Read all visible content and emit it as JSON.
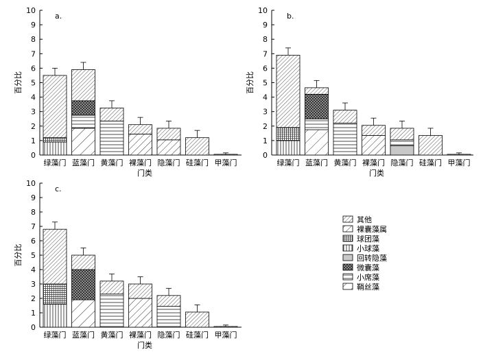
{
  "legend": {
    "entries": [
      {
        "label": "其他",
        "pattern": "diag-dense"
      },
      {
        "label": "裸囊藻属",
        "pattern": "diag-medium"
      },
      {
        "label": "球团藻",
        "pattern": "grid-fine"
      },
      {
        "label": "小球藻",
        "pattern": "vertical"
      },
      {
        "label": "回转隐藻",
        "pattern": "gray"
      },
      {
        "label": "微囊藻",
        "pattern": "crosshatch"
      },
      {
        "label": "小席藻",
        "pattern": "horizontal"
      },
      {
        "label": "鞘丝藻",
        "pattern": "diag-wide"
      }
    ]
  },
  "chart_data": [
    {
      "panel_label": "a.",
      "type": "bar",
      "stacked": true,
      "xlabel": "门类",
      "ylabel": "百分比",
      "ylim": [
        0,
        10
      ],
      "yticks": [
        0,
        1,
        2,
        3,
        4,
        5,
        6,
        7,
        8,
        9,
        10
      ],
      "categories": [
        "绿藻门",
        "蓝藻门",
        "黄藻门",
        "裸藻门",
        "隐藻门",
        "硅藻门",
        "甲藻门"
      ],
      "bars": [
        {
          "category": "绿藻门",
          "total": 5.5,
          "error": 0.5,
          "segments": [
            {
              "pattern": "vertical",
              "value": 0.9
            },
            {
              "pattern": "grid-fine",
              "value": 0.3
            },
            {
              "pattern": "diag-dense",
              "value": 4.3
            }
          ]
        },
        {
          "category": "蓝藻门",
          "total": 5.9,
          "error": 0.5,
          "segments": [
            {
              "pattern": "diag-wide",
              "value": 1.85
            },
            {
              "pattern": "horizontal",
              "value": 0.9
            },
            {
              "pattern": "crosshatch",
              "value": 1.0
            },
            {
              "pattern": "diag-dense",
              "value": 2.15
            }
          ]
        },
        {
          "category": "黄藻门",
          "total": 3.25,
          "error": 0.5,
          "segments": [
            {
              "pattern": "horizontal",
              "value": 2.35
            },
            {
              "pattern": "diag-dense",
              "value": 0.9
            }
          ]
        },
        {
          "category": "裸藻门",
          "total": 2.1,
          "error": 0.5,
          "segments": [
            {
              "pattern": "diag-medium",
              "value": 1.45
            },
            {
              "pattern": "diag-dense",
              "value": 0.65
            }
          ]
        },
        {
          "category": "隐藻门",
          "total": 1.85,
          "error": 0.5,
          "segments": [
            {
              "pattern": "diag-medium",
              "value": 1.05
            },
            {
              "pattern": "diag-dense",
              "value": 0.8
            }
          ]
        },
        {
          "category": "硅藻门",
          "total": 1.2,
          "error": 0.5,
          "segments": [
            {
              "pattern": "diag-dense",
              "value": 1.2
            }
          ]
        },
        {
          "category": "甲藻门",
          "total": 0.05,
          "error": 0.1,
          "segments": [
            {
              "pattern": "diag-dense",
              "value": 0.05
            }
          ]
        }
      ]
    },
    {
      "panel_label": "b.",
      "type": "bar",
      "stacked": true,
      "xlabel": "门类",
      "ylabel": "百分比",
      "ylim": [
        0,
        10
      ],
      "yticks": [
        0,
        1,
        2,
        3,
        4,
        5,
        6,
        7,
        8,
        9,
        10
      ],
      "categories": [
        "绿藻门",
        "蓝藻门",
        "黄藻门",
        "裸藻门",
        "隐藻门",
        "硅藻门",
        "甲藻门"
      ],
      "bars": [
        {
          "category": "绿藻门",
          "total": 6.9,
          "error": 0.5,
          "segments": [
            {
              "pattern": "vertical",
              "value": 1.0
            },
            {
              "pattern": "grid-fine",
              "value": 0.9
            },
            {
              "pattern": "diag-dense",
              "value": 5.0
            }
          ]
        },
        {
          "category": "蓝藻门",
          "total": 4.65,
          "error": 0.5,
          "segments": [
            {
              "pattern": "diag-wide",
              "value": 1.75
            },
            {
              "pattern": "horizontal",
              "value": 0.75
            },
            {
              "pattern": "crosshatch",
              "value": 1.7
            },
            {
              "pattern": "diag-dense",
              "value": 0.45
            }
          ]
        },
        {
          "category": "黄藻门",
          "total": 3.1,
          "error": 0.5,
          "segments": [
            {
              "pattern": "horizontal",
              "value": 2.2
            },
            {
              "pattern": "diag-dense",
              "value": 0.9
            }
          ]
        },
        {
          "category": "裸藻门",
          "total": 2.05,
          "error": 0.5,
          "segments": [
            {
              "pattern": "diag-medium",
              "value": 1.35
            },
            {
              "pattern": "diag-dense",
              "value": 0.7
            }
          ]
        },
        {
          "category": "隐藻门",
          "total": 1.85,
          "error": 0.5,
          "segments": [
            {
              "pattern": "gray",
              "value": 0.65
            },
            {
              "pattern": "horizontal",
              "value": 0.4
            },
            {
              "pattern": "diag-dense",
              "value": 0.8
            }
          ]
        },
        {
          "category": "硅藻门",
          "total": 1.35,
          "error": 0.5,
          "segments": [
            {
              "pattern": "diag-dense",
              "value": 1.35
            }
          ]
        },
        {
          "category": "甲藻门",
          "total": 0.05,
          "error": 0.1,
          "segments": [
            {
              "pattern": "diag-dense",
              "value": 0.05
            }
          ]
        }
      ]
    },
    {
      "panel_label": "c.",
      "type": "bar",
      "stacked": true,
      "xlabel": "门类",
      "ylabel": "百分比",
      "ylim": [
        0,
        10
      ],
      "yticks": [
        0,
        1,
        2,
        3,
        4,
        5,
        6,
        7,
        8,
        9,
        10
      ],
      "categories": [
        "绿藻门",
        "蓝藻门",
        "黄藻门",
        "裸藻门",
        "隐藻门",
        "硅藻门",
        "甲藻门"
      ],
      "bars": [
        {
          "category": "绿藻门",
          "total": 6.8,
          "error": 0.5,
          "segments": [
            {
              "pattern": "vertical",
              "value": 1.6
            },
            {
              "pattern": "grid-fine",
              "value": 1.4
            },
            {
              "pattern": "diag-dense",
              "value": 3.8
            }
          ]
        },
        {
          "category": "蓝藻门",
          "total": 5.0,
          "error": 0.5,
          "segments": [
            {
              "pattern": "diag-wide",
              "value": 1.9
            },
            {
              "pattern": "crosshatch",
              "value": 2.1
            },
            {
              "pattern": "diag-dense",
              "value": 1.0
            }
          ]
        },
        {
          "category": "黄藻门",
          "total": 3.2,
          "error": 0.5,
          "segments": [
            {
              "pattern": "horizontal",
              "value": 2.3
            },
            {
              "pattern": "diag-dense",
              "value": 0.9
            }
          ]
        },
        {
          "category": "裸藻门",
          "total": 3.0,
          "error": 0.5,
          "segments": [
            {
              "pattern": "diag-medium",
              "value": 2.0
            },
            {
              "pattern": "diag-dense",
              "value": 1.0
            }
          ]
        },
        {
          "category": "隐藻门",
          "total": 2.2,
          "error": 0.5,
          "segments": [
            {
              "pattern": "horizontal",
              "value": 1.45
            },
            {
              "pattern": "diag-dense",
              "value": 0.75
            }
          ]
        },
        {
          "category": "硅藻门",
          "total": 1.05,
          "error": 0.5,
          "segments": [
            {
              "pattern": "diag-dense",
              "value": 1.05
            }
          ]
        },
        {
          "category": "甲藻门",
          "total": 0.05,
          "error": 0.1,
          "segments": [
            {
              "pattern": "diag-dense",
              "value": 0.05
            }
          ]
        }
      ]
    }
  ]
}
